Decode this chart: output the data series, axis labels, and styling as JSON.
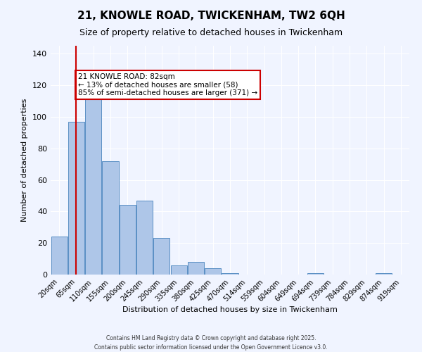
{
  "title1": "21, KNOWLE ROAD, TWICKENHAM, TW2 6QH",
  "title2": "Size of property relative to detached houses in Twickenham",
  "xlabel": "Distribution of detached houses by size in Twickenham",
  "ylabel": "Number of detached properties",
  "categories": [
    "20sqm",
    "65sqm",
    "110sqm",
    "155sqm",
    "200sqm",
    "245sqm",
    "290sqm",
    "335sqm",
    "380sqm",
    "425sqm",
    "470sqm",
    "514sqm",
    "559sqm",
    "604sqm",
    "649sqm",
    "694sqm",
    "739sqm",
    "784sqm",
    "829sqm",
    "874sqm",
    "919sqm"
  ],
  "values": [
    24,
    97,
    112,
    72,
    44,
    47,
    23,
    6,
    8,
    4,
    1,
    0,
    0,
    0,
    0,
    1,
    0,
    0,
    0,
    1,
    0
  ],
  "bar_color": "#aec6e8",
  "bar_edge_color": "#5a8fc4",
  "property_line_x": 1,
  "property_sqm": "82sqm",
  "annotation_text": "21 KNOWLE ROAD: 82sqm\n← 13% of detached houses are smaller (58)\n85% of semi-detached houses are larger (371) →",
  "annotation_box_color": "#ffffff",
  "annotation_box_edge": "#cc0000",
  "vline_color": "#cc0000",
  "footer1": "Contains HM Land Registry data © Crown copyright and database right 2025.",
  "footer2": "Contains public sector information licensed under the Open Government Licence v3.0.",
  "ylim": [
    0,
    145
  ],
  "background_color": "#f0f4ff",
  "plot_bg_color": "#f0f4ff"
}
